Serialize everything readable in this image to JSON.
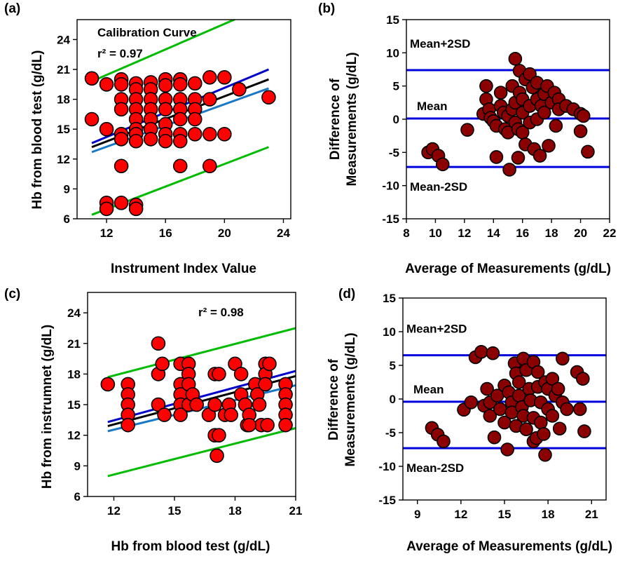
{
  "chart_data": [
    {
      "panel": "(a)",
      "type": "scatter",
      "title": "Calibration Curve",
      "annotation": "r² = 0.97",
      "xlabel": "Instrument Index Value",
      "ylabel": "Hb from blood test (g/dL)",
      "xlim": [
        10,
        24.5
      ],
      "ylim": [
        6,
        26
      ],
      "xticks": [
        12,
        16,
        20,
        24
      ],
      "yticks": [
        6,
        9,
        12,
        15,
        18,
        21,
        24
      ],
      "marker_color": "#ff0000",
      "points": [
        [
          11,
          20.1
        ],
        [
          11,
          16
        ],
        [
          12,
          19.5
        ],
        [
          12,
          15
        ],
        [
          12,
          7.6
        ],
        [
          12,
          7
        ],
        [
          13,
          20
        ],
        [
          13,
          19.5
        ],
        [
          13,
          18
        ],
        [
          13,
          17
        ],
        [
          13,
          14.5
        ],
        [
          13,
          14
        ],
        [
          13,
          11.3
        ],
        [
          13,
          7.6
        ],
        [
          14,
          19.6
        ],
        [
          14,
          19
        ],
        [
          14,
          18
        ],
        [
          14,
          17
        ],
        [
          14,
          16
        ],
        [
          14,
          15
        ],
        [
          14,
          14.5
        ],
        [
          14,
          13.8
        ],
        [
          14,
          7.4
        ],
        [
          14,
          7
        ],
        [
          15,
          19.7
        ],
        [
          15,
          19
        ],
        [
          15,
          18
        ],
        [
          15,
          17
        ],
        [
          15,
          16
        ],
        [
          15,
          15
        ],
        [
          15,
          14
        ],
        [
          16,
          20
        ],
        [
          16,
          19.4
        ],
        [
          16,
          18
        ],
        [
          16,
          17
        ],
        [
          16,
          15.5
        ],
        [
          16,
          14.5
        ],
        [
          16,
          13.8
        ],
        [
          17,
          20
        ],
        [
          17,
          19.5
        ],
        [
          17,
          18
        ],
        [
          17,
          17
        ],
        [
          17,
          16
        ],
        [
          17,
          14.5
        ],
        [
          17,
          13.8
        ],
        [
          17,
          11.3
        ],
        [
          18,
          19.6
        ],
        [
          18,
          18
        ],
        [
          18,
          17
        ],
        [
          18,
          16
        ],
        [
          18,
          14.5
        ],
        [
          19,
          20.2
        ],
        [
          19,
          18
        ],
        [
          19,
          14.5
        ],
        [
          19,
          11.3
        ],
        [
          20,
          20.2
        ],
        [
          20,
          14.5
        ],
        [
          21,
          19
        ],
        [
          23,
          18.2
        ]
      ],
      "lines": [
        {
          "name": "upper prediction",
          "color": "#00bb00",
          "x": [
            11,
            23
          ],
          "y": [
            19.8,
            27.5
          ]
        },
        {
          "name": "upper confidence",
          "color": "#0000cc",
          "x": [
            11,
            23
          ],
          "y": [
            13.6,
            21.0
          ]
        },
        {
          "name": "fit",
          "color": "#000000",
          "x": [
            11,
            23
          ],
          "y": [
            13.2,
            20.0
          ]
        },
        {
          "name": "lower confidence",
          "color": "#1a78c8",
          "x": [
            11,
            23
          ],
          "y": [
            12.7,
            19.1
          ]
        },
        {
          "name": "lower prediction",
          "color": "#00bb00",
          "x": [
            11,
            23
          ],
          "y": [
            6.4,
            13.2
          ]
        }
      ]
    },
    {
      "panel": "(b)",
      "type": "scatter",
      "xlabel": "Average of Measurements (g/dL)",
      "ylabel_line1": "Difference of",
      "ylabel_line2": "Measurements (g/dL)",
      "xlim": [
        8,
        22
      ],
      "ylim": [
        -15,
        15
      ],
      "xticks": [
        8,
        10,
        12,
        14,
        16,
        18,
        20,
        22
      ],
      "yticks": [
        -15,
        -10,
        -5,
        0,
        5,
        10,
        15
      ],
      "marker_color": "#8b0000",
      "hlines": [
        {
          "label": "Mean+2SD",
          "y": 7.4,
          "color": "#0000dd"
        },
        {
          "label": "Mean",
          "y": 0.1,
          "color": "#0000dd"
        },
        {
          "label": "Mean-2SD",
          "y": -7.2,
          "color": "#0000dd"
        }
      ],
      "points": [
        [
          9.5,
          -5
        ],
        [
          9.8,
          -4.5
        ],
        [
          10.2,
          -5.5
        ],
        [
          10.5,
          -6.8
        ],
        [
          12.2,
          -1.6
        ],
        [
          13.3,
          0.8
        ],
        [
          13.5,
          5
        ],
        [
          13.5,
          3
        ],
        [
          13.7,
          1.5
        ],
        [
          13.8,
          0.2
        ],
        [
          14,
          -0.3
        ],
        [
          14.2,
          -1
        ],
        [
          14.2,
          -5.7
        ],
        [
          14.5,
          4
        ],
        [
          14.5,
          2
        ],
        [
          14.7,
          1
        ],
        [
          14.8,
          -1.5
        ],
        [
          15,
          -2
        ],
        [
          15,
          0.5
        ],
        [
          15.1,
          -7.6
        ],
        [
          15.3,
          1.5
        ],
        [
          15.3,
          5
        ],
        [
          15.5,
          9.1
        ],
        [
          15.5,
          2.5
        ],
        [
          15.5,
          -0.5
        ],
        [
          15.7,
          -1.5
        ],
        [
          15.7,
          -5.8
        ],
        [
          15.8,
          7.3
        ],
        [
          15.8,
          4
        ],
        [
          16,
          3
        ],
        [
          16,
          1
        ],
        [
          16,
          -2
        ],
        [
          16.2,
          6
        ],
        [
          16.2,
          -3.8
        ],
        [
          16.5,
          6.8
        ],
        [
          16.5,
          2
        ],
        [
          16.5,
          -0.5
        ],
        [
          16.7,
          4.8
        ],
        [
          16.8,
          -4.5
        ],
        [
          17,
          5.5
        ],
        [
          17,
          3
        ],
        [
          17,
          0
        ],
        [
          17.2,
          -5.5
        ],
        [
          17.3,
          2
        ],
        [
          17.5,
          3.8
        ],
        [
          17.5,
          1
        ],
        [
          17.7,
          5
        ],
        [
          17.8,
          -4
        ],
        [
          18,
          2.5
        ],
        [
          18.2,
          4
        ],
        [
          18.3,
          -1
        ],
        [
          18.5,
          3
        ],
        [
          18.5,
          1.5
        ],
        [
          19,
          2
        ],
        [
          19.5,
          1.5
        ],
        [
          20,
          0.8
        ],
        [
          20,
          -1.8
        ],
        [
          20.2,
          0.5
        ],
        [
          20.5,
          -4.9
        ]
      ]
    },
    {
      "panel": "(c)",
      "type": "scatter",
      "annotation": "r² = 0.98",
      "xlabel": "Hb from blood test (g/dL)",
      "ylabel": "Hb from instrumnet (g/dL)",
      "xlim": [
        10.7,
        21
      ],
      "ylim": [
        6,
        26
      ],
      "xticks": [
        12,
        15,
        18,
        21
      ],
      "yticks": [
        6,
        9,
        12,
        15,
        18,
        21,
        24
      ],
      "marker_color": "#ff0000",
      "points": [
        [
          11.7,
          17
        ],
        [
          12.7,
          17
        ],
        [
          12.7,
          16
        ],
        [
          12.7,
          15
        ],
        [
          12.7,
          14
        ],
        [
          12.7,
          13
        ],
        [
          14.2,
          21
        ],
        [
          14.2,
          18
        ],
        [
          14.2,
          15
        ],
        [
          14.4,
          19
        ],
        [
          14.5,
          14
        ],
        [
          15.3,
          19
        ],
        [
          15.3,
          17
        ],
        [
          15.3,
          16
        ],
        [
          15.3,
          15
        ],
        [
          15.3,
          14
        ],
        [
          15.7,
          19
        ],
        [
          15.7,
          18
        ],
        [
          15.7,
          17
        ],
        [
          15.7,
          15
        ],
        [
          15.9,
          16
        ],
        [
          16.1,
          15
        ],
        [
          16.7,
          14
        ],
        [
          17,
          18
        ],
        [
          17,
          15
        ],
        [
          17,
          12
        ],
        [
          17.1,
          10
        ],
        [
          17.2,
          12
        ],
        [
          17.2,
          18
        ],
        [
          17.5,
          14
        ],
        [
          17.7,
          15
        ],
        [
          17.8,
          14
        ],
        [
          18,
          19
        ],
        [
          18.3,
          18
        ],
        [
          18.3,
          16
        ],
        [
          18.5,
          15
        ],
        [
          18.6,
          13
        ],
        [
          18.7,
          14
        ],
        [
          19,
          17
        ],
        [
          19.1,
          16
        ],
        [
          19.2,
          15
        ],
        [
          19.3,
          13
        ],
        [
          19.5,
          19
        ],
        [
          19.5,
          18
        ],
        [
          19.5,
          17
        ],
        [
          19.7,
          19
        ],
        [
          20.5,
          17
        ],
        [
          20.5,
          16
        ],
        [
          20.5,
          15
        ],
        [
          20.5,
          14
        ],
        [
          20.5,
          13
        ],
        [
          19.6,
          13
        ],
        [
          18.7,
          13
        ]
      ],
      "lines": [
        {
          "name": "upper prediction",
          "color": "#00bb00",
          "x": [
            11.7,
            21
          ],
          "y": [
            17.7,
            22.5
          ]
        },
        {
          "name": "upper confidence",
          "color": "#0000cc",
          "x": [
            11.7,
            21
          ],
          "y": [
            13.3,
            18.3
          ]
        },
        {
          "name": "fit",
          "color": "#000000",
          "x": [
            11.7,
            21
          ],
          "y": [
            12.9,
            17.8
          ]
        },
        {
          "name": "lower confidence",
          "color": "#1a78c8",
          "x": [
            11.7,
            21
          ],
          "y": [
            12.4,
            16.9
          ]
        },
        {
          "name": "lower prediction",
          "color": "#00bb00",
          "x": [
            11.7,
            21
          ],
          "y": [
            8.0,
            12.7
          ]
        }
      ]
    },
    {
      "panel": "(d)",
      "type": "scatter",
      "xlabel": "Average of Measurements (g/dL)",
      "ylabel_line1": "Difference of",
      "ylabel_line2": "Measurements (g/dL)",
      "xlim": [
        8,
        22
      ],
      "ylim": [
        -15,
        15
      ],
      "xticks": [
        9,
        12,
        15,
        18,
        21
      ],
      "yticks": [
        -15,
        -10,
        -5,
        0,
        5,
        10,
        15
      ],
      "marker_color": "#8b0000",
      "hlines": [
        {
          "label": "Mean+2SD",
          "y": 6.5,
          "color": "#0000dd"
        },
        {
          "label": "Mean",
          "y": -0.4,
          "color": "#0000dd"
        },
        {
          "label": "Mean-2SD",
          "y": -7.3,
          "color": "#0000dd"
        }
      ],
      "points": [
        [
          10,
          -4.3
        ],
        [
          10.4,
          -5.3
        ],
        [
          10.8,
          -6.3
        ],
        [
          12.2,
          -1.6
        ],
        [
          12.7,
          -0.5
        ],
        [
          13,
          6.2
        ],
        [
          13.4,
          7
        ],
        [
          13.6,
          -1
        ],
        [
          13.8,
          1.5
        ],
        [
          14,
          -0.5
        ],
        [
          14,
          -2.5
        ],
        [
          14.2,
          6.8
        ],
        [
          14.3,
          -5.7
        ],
        [
          14.5,
          0.5
        ],
        [
          14.7,
          -1.5
        ],
        [
          15,
          2
        ],
        [
          15,
          -3.5
        ],
        [
          15.2,
          -7.5
        ],
        [
          15.3,
          1
        ],
        [
          15.5,
          -0.5
        ],
        [
          15.5,
          -2
        ],
        [
          15.7,
          5.3
        ],
        [
          15.8,
          3.8
        ],
        [
          15.8,
          -4
        ],
        [
          16,
          2.5
        ],
        [
          16,
          0.5
        ],
        [
          16.2,
          -1.2
        ],
        [
          16.3,
          6
        ],
        [
          16.3,
          -2.5
        ],
        [
          16.5,
          4.3
        ],
        [
          16.5,
          -4.5
        ],
        [
          16.7,
          1.5
        ],
        [
          16.8,
          -0.2
        ],
        [
          17,
          5.5
        ],
        [
          17,
          -6.3
        ],
        [
          17,
          -2.8
        ],
        [
          17.2,
          -5.8
        ],
        [
          17.3,
          4
        ],
        [
          17.3,
          1.8
        ],
        [
          17.5,
          -0.5
        ],
        [
          17.5,
          -3.5
        ],
        [
          17.7,
          -5.2
        ],
        [
          17.8,
          2.5
        ],
        [
          17.8,
          -8.3
        ],
        [
          18,
          1.5
        ],
        [
          18,
          -1.5
        ],
        [
          18.3,
          3
        ],
        [
          18.3,
          -2.5
        ],
        [
          18.5,
          0.5
        ],
        [
          18.7,
          1.5
        ],
        [
          18.8,
          -4.4
        ],
        [
          19,
          6
        ],
        [
          19,
          -0.5
        ],
        [
          19.3,
          -1.5
        ],
        [
          20,
          4
        ],
        [
          20.2,
          -1.5
        ],
        [
          20.4,
          3
        ],
        [
          20.5,
          -4.8
        ]
      ]
    }
  ]
}
